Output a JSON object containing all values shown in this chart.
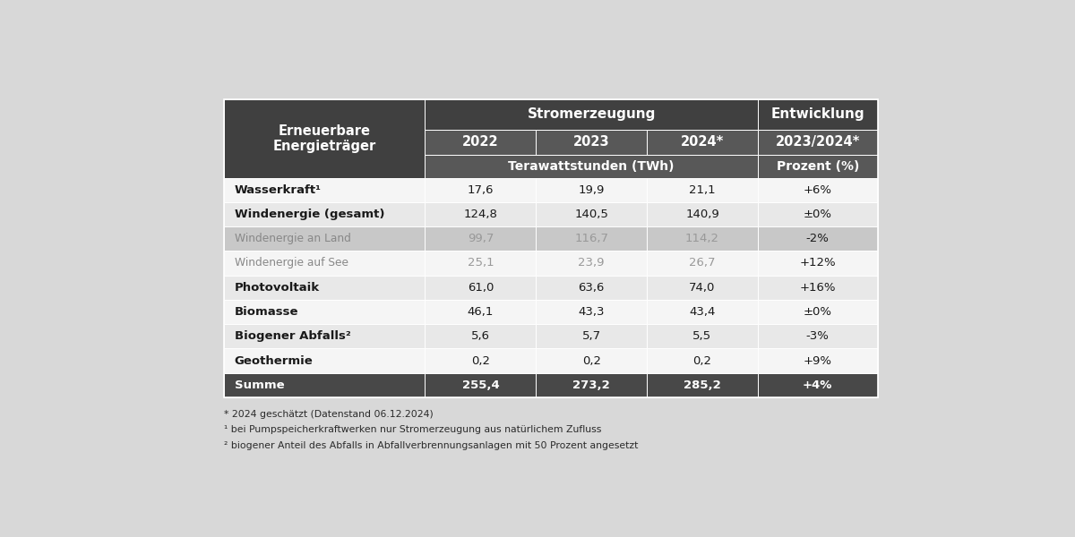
{
  "bg_color": "#d8d8d8",
  "header_dark": "#404040",
  "header_mid": "#585858",
  "row_white": "#f5f5f5",
  "row_light_gray": "#e8e8e8",
  "row_medium_gray": "#c8c8c8",
  "row_sub_gray": "#d0d0d0",
  "row_dark": "#484848",
  "col_header": "Erneuerbare\nEnergieträger",
  "col_years": [
    "2022",
    "2023",
    "2024*"
  ],
  "col_entwicklung": "2023/2024*",
  "unit_twh": "Terawattstunden (TWh)",
  "unit_pct": "Prozent (%)",
  "stromerzeugung": "Stromerzeugung",
  "entwicklung": "Entwicklung",
  "rows": [
    {
      "label": "Wasserkraft¹",
      "superscript": true,
      "vals": [
        "17,6",
        "19,9",
        "21,1"
      ],
      "dev": "+6%",
      "bold": true,
      "sub": false,
      "style": "white"
    },
    {
      "label": "Windenergie (gesamt)",
      "superscript": false,
      "vals": [
        "124,8",
        "140,5",
        "140,9"
      ],
      "dev": "±0%",
      "bold": true,
      "sub": false,
      "style": "light"
    },
    {
      "label": "Windenergie an Land",
      "superscript": false,
      "vals": [
        "99,7",
        "116,7",
        "114,2"
      ],
      "dev": "-2%",
      "bold": false,
      "sub": true,
      "style": "medium"
    },
    {
      "label": "Windenergie auf See",
      "superscript": false,
      "vals": [
        "25,1",
        "23,9",
        "26,7"
      ],
      "dev": "+12%",
      "bold": false,
      "sub": true,
      "style": "white"
    },
    {
      "label": "Photovoltaik",
      "superscript": false,
      "vals": [
        "61,0",
        "63,6",
        "74,0"
      ],
      "dev": "+16%",
      "bold": true,
      "sub": false,
      "style": "light"
    },
    {
      "label": "Biomasse",
      "superscript": false,
      "vals": [
        "46,1",
        "43,3",
        "43,4"
      ],
      "dev": "±0%",
      "bold": true,
      "sub": false,
      "style": "white"
    },
    {
      "label": "Biogener Abfalls²",
      "superscript": true,
      "vals": [
        "5,6",
        "5,7",
        "5,5"
      ],
      "dev": "-3%",
      "bold": true,
      "sub": false,
      "style": "light"
    },
    {
      "label": "Geothermie",
      "superscript": false,
      "vals": [
        "0,2",
        "0,2",
        "0,2"
      ],
      "dev": "+9%",
      "bold": true,
      "sub": false,
      "style": "white"
    },
    {
      "label": "Summe",
      "superscript": false,
      "vals": [
        "255,4",
        "273,2",
        "285,2"
      ],
      "dev": "+4%",
      "bold": true,
      "sub": false,
      "style": "dark"
    }
  ],
  "footnotes": [
    "* 2024 geschätzt (Datenstand 06.12.2024)",
    "¹ bei Pumpspeicherkraftwerken nur Stromerzeugung aus natürlichem Zufluss",
    "² biogener Anteil des Abfalls in Abfallverbrennungsanlagen mit 50 Prozent angesetzt"
  ]
}
